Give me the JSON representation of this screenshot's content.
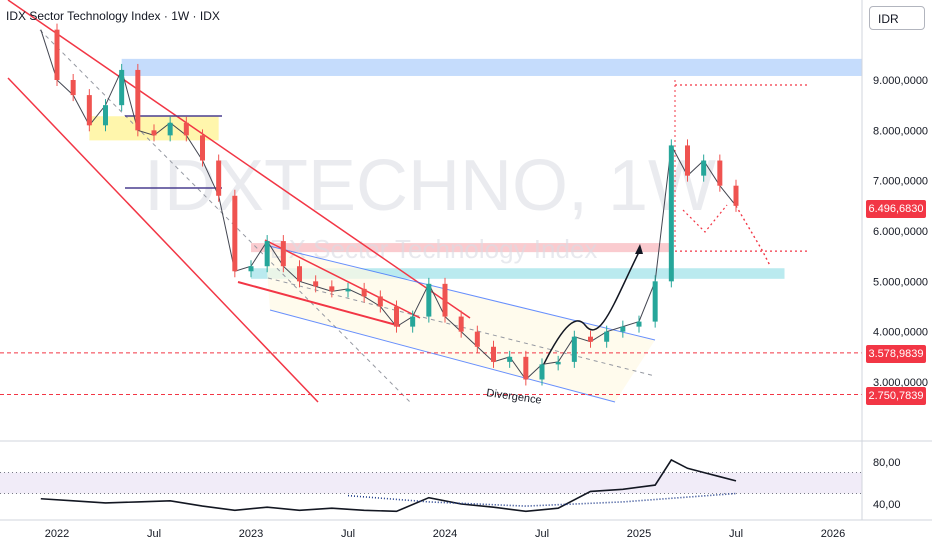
{
  "header": {
    "title": "IDX Sector Technology Index · 1W · IDX",
    "currency": "IDR"
  },
  "watermark": {
    "symbol": "IDXTECHNO, 1W",
    "name": "IDX Sector Technology Index"
  },
  "annotations": {
    "divergence": "Divergence"
  },
  "colors": {
    "up": "#26a69a",
    "down": "#ef5350",
    "channel_red": "#f23645",
    "channel_blue": "#2962ff",
    "resistance_band": "#bbd6fb",
    "support_band": "#aee6ec",
    "pink_band": "#f8b5bb",
    "yellow_box": "#fff59d",
    "rsi_fill": "#ede7f6",
    "price_tag": "#f23645"
  },
  "chart_data": [
    {
      "type": "candlestick",
      "title": "IDX Sector Technology Index",
      "ylim": [
        2400000,
        10000000
      ],
      "y_ticks": [
        "3.000,0000",
        "4.000,0000",
        "5.000,0000",
        "6.000,0000",
        "7.000,0000",
        "8.000,0000",
        "9.000,0000"
      ],
      "y_tick_values": [
        3000000,
        4000000,
        5000000,
        6000000,
        7000000,
        8000000,
        9000000
      ],
      "x_ticks": [
        "2022",
        "Jul",
        "2023",
        "Jul",
        "2024",
        "Jul",
        "2025",
        "Jul",
        "2026"
      ],
      "x_tick_values": [
        "2022-01",
        "2022-07",
        "2023-01",
        "2023-07",
        "2024-01",
        "2024-07",
        "2025-01",
        "2025-07",
        "2026-01"
      ],
      "last_price": "6.496,6830",
      "levels": [
        {
          "label": "3.578,9839",
          "value": 3578983.9
        },
        {
          "label": "2.750,7839",
          "value": 2750783.9
        }
      ],
      "target_level": 8900000,
      "pullback_level": 5600000,
      "zones": [
        {
          "name": "resistance",
          "from": 9080000,
          "to": 9420000,
          "start": "2022-05"
        },
        {
          "name": "support",
          "from": 5050000,
          "to": 5260000,
          "start": "2023-01",
          "end": "2025-10"
        },
        {
          "name": "pink",
          "from": 5580000,
          "to": 5760000,
          "start": "2023-01",
          "end": "2025-03"
        },
        {
          "name": "yellow",
          "from": 7800000,
          "to": 8280000,
          "start": "2022-03",
          "end": "2022-11"
        }
      ],
      "series": [
        {
          "name": "IDXTECHNO",
          "points": [
            [
              "2021-12",
              10000000
            ],
            [
              "2022-01",
              9000000
            ],
            [
              "2022-02",
              8700000
            ],
            [
              "2022-03",
              8100000
            ],
            [
              "2022-04",
              8500000
            ],
            [
              "2022-05",
              9200000
            ],
            [
              "2022-06",
              8000000
            ],
            [
              "2022-07",
              7900000
            ],
            [
              "2022-08",
              8150000
            ],
            [
              "2022-09",
              7900000
            ],
            [
              "2022-10",
              7400000
            ],
            [
              "2022-11",
              6700000
            ],
            [
              "2022-12",
              5200000
            ],
            [
              "2023-01",
              5300000
            ],
            [
              "2023-02",
              5800000
            ],
            [
              "2023-03",
              5300000
            ],
            [
              "2023-04",
              5000000
            ],
            [
              "2023-05",
              4900000
            ],
            [
              "2023-06",
              4800000
            ],
            [
              "2023-07",
              4850000
            ],
            [
              "2023-08",
              4700000
            ],
            [
              "2023-09",
              4500000
            ],
            [
              "2023-10",
              4100000
            ],
            [
              "2023-11",
              4300000
            ],
            [
              "2023-12",
              4950000
            ],
            [
              "2024-01",
              4300000
            ],
            [
              "2024-02",
              4000000
            ],
            [
              "2024-03",
              3700000
            ],
            [
              "2024-04",
              3400000
            ],
            [
              "2024-05",
              3500000
            ],
            [
              "2024-06",
              3050000
            ],
            [
              "2024-07",
              3350000
            ],
            [
              "2024-08",
              3400000
            ],
            [
              "2024-09",
              3900000
            ],
            [
              "2024-10",
              3800000
            ],
            [
              "2024-11",
              4000000
            ],
            [
              "2024-12",
              4100000
            ],
            [
              "2025-01",
              4200000
            ],
            [
              "2025-02",
              5000000
            ],
            [
              "2025-03",
              7700000
            ],
            [
              "2025-04",
              7100000
            ],
            [
              "2025-05",
              7400000
            ],
            [
              "2025-06",
              6900000
            ],
            [
              "2025-07",
              6500000
            ]
          ]
        }
      ],
      "projection": [
        [
          "2025-07",
          6500000
        ],
        [
          "2025-09",
          5300000
        ]
      ]
    },
    {
      "type": "line",
      "title": "RSI",
      "ylim": [
        30,
        90
      ],
      "y_ticks": [
        "40,00",
        "80,00"
      ],
      "y_tick_values": [
        40,
        80
      ],
      "bands": [
        50,
        70
      ],
      "series": [
        {
          "name": "RSI",
          "points": [
            [
              "2021-12",
              45
            ],
            [
              "2022-02",
              43
            ],
            [
              "2022-04",
              41
            ],
            [
              "2022-06",
              42
            ],
            [
              "2022-08",
              43
            ],
            [
              "2022-10",
              38
            ],
            [
              "2022-12",
              34
            ],
            [
              "2023-02",
              37
            ],
            [
              "2023-04",
              34
            ],
            [
              "2023-06",
              36
            ],
            [
              "2023-08",
              34
            ],
            [
              "2023-10",
              33
            ],
            [
              "2023-12",
              46
            ],
            [
              "2024-02",
              40
            ],
            [
              "2024-04",
              37
            ],
            [
              "2024-06",
              33
            ],
            [
              "2024-08",
              36
            ],
            [
              "2024-10",
              52
            ],
            [
              "2024-12",
              54
            ],
            [
              "2025-02",
              58
            ],
            [
              "2025-03",
              82
            ],
            [
              "2025-04",
              74
            ],
            [
              "2025-05",
              70
            ],
            [
              "2025-06",
              66
            ],
            [
              "2025-07",
              62
            ]
          ]
        },
        {
          "name": "RSI MA",
          "points": [
            [
              "2023-07",
              48
            ],
            [
              "2023-12",
              42
            ],
            [
              "2024-06",
              38
            ],
            [
              "2024-12",
              42
            ],
            [
              "2025-07",
              50
            ]
          ]
        }
      ]
    }
  ]
}
